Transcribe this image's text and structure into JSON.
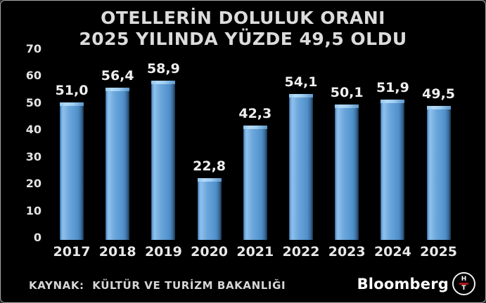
{
  "title": {
    "line1": "OTELLERİN DOLULUK ORANI",
    "line2": "2025 YILINDA YÜZDE 49,5 OLDU"
  },
  "chart_data": {
    "type": "bar",
    "title": "OTELLERİN DOLULUK ORANI 2025 YILINDA YÜZDE 49,5 OLDU",
    "categories": [
      "2017",
      "2018",
      "2019",
      "2020",
      "2021",
      "2022",
      "2023",
      "2024",
      "2025"
    ],
    "values": [
      51.0,
      56.4,
      58.9,
      22.8,
      42.3,
      54.1,
      50.1,
      51.9,
      49.5
    ],
    "value_labels": [
      "51,0",
      "56,4",
      "58,9",
      "22,8",
      "42,3",
      "54,1",
      "50,1",
      "51,9",
      "49,5"
    ],
    "xlabel": "",
    "ylabel": "",
    "ylim": [
      0,
      70
    ],
    "yticks": [
      0,
      10,
      20,
      30,
      40,
      50,
      60,
      70
    ],
    "grid": false,
    "legend": false,
    "bar_color": "#5b9bd5",
    "bar_highlight_color": "#b4dbf7",
    "bar_shadow_color": "#17354f",
    "background_color": "#000000",
    "text_color": "#e9e9e9"
  },
  "footer": {
    "source": "KAYNAK:  KÜLTÜR VE TURİZM BAKANLIĞI",
    "brand": "Bloomberg",
    "logo_top": "H",
    "logo_bottom": "T",
    "logo_bar_color": "#b01119"
  }
}
